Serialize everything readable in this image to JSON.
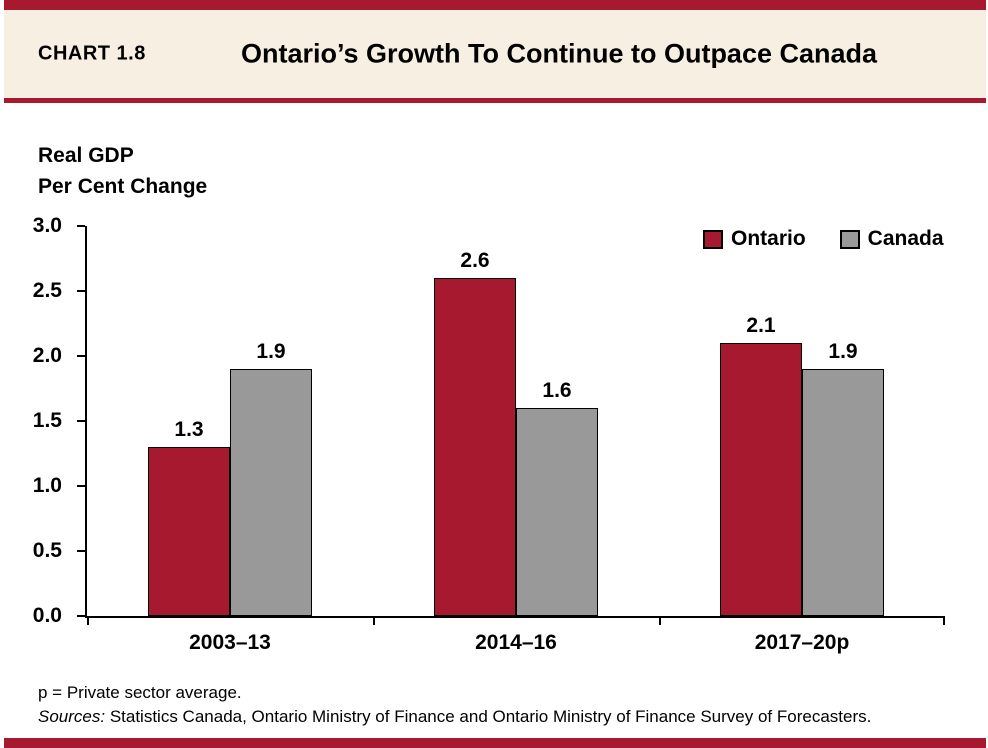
{
  "colors": {
    "accent_red": "#A6192E",
    "header_bg": "#F7EFE1",
    "canada_gray": "#999999"
  },
  "header": {
    "chart_label": "CHART 1.8",
    "title": "Ontario’s Growth To Continue to Outpace Canada"
  },
  "axis_title": {
    "line1": "Real GDP",
    "line2": "Per Cent Change"
  },
  "chart_data": {
    "type": "bar",
    "title": "Ontario’s Growth To Continue to Outpace Canada",
    "ylabel": "Real GDP Per Cent Change",
    "categories": [
      "2003–13",
      "2014–16",
      "2017–20p"
    ],
    "series": [
      {
        "name": "Ontario",
        "color": "#A6192E",
        "values": [
          1.3,
          2.6,
          2.1
        ]
      },
      {
        "name": "Canada",
        "color": "#999999",
        "values": [
          1.9,
          1.6,
          1.9
        ]
      }
    ],
    "ylim": [
      0,
      3.0
    ],
    "ytick_step": 0.5,
    "ytick_labels": [
      "0.0",
      "0.5",
      "1.0",
      "1.5",
      "2.0",
      "2.5",
      "3.0"
    ],
    "grid": false,
    "legend_position": "top-right",
    "value_label_decimals": 1
  },
  "legend": {
    "items": [
      {
        "label": "Ontario",
        "color": "#A6192E"
      },
      {
        "label": "Canada",
        "color": "#999999"
      }
    ]
  },
  "footnotes": {
    "note": "p = Private sector average.",
    "sources_label": "Sources:",
    "sources_text": " Statistics Canada, Ontario Ministry of Finance and Ontario Ministry of Finance Survey of Forecasters."
  }
}
